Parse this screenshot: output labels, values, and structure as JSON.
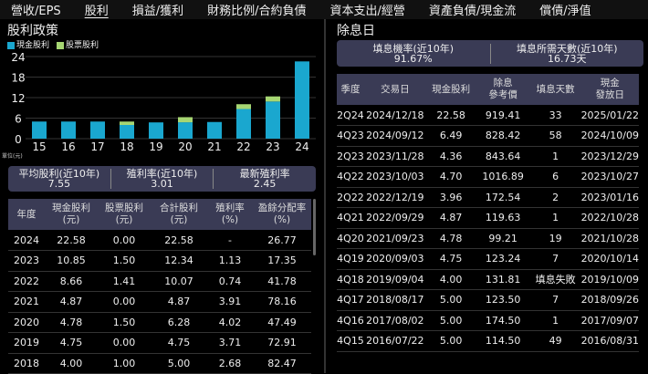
{
  "nav": [
    "營收/EPS",
    "股利",
    "損益/獲利",
    "財務比例/合約負債",
    "資本支出/經營",
    "資產負債/現金流",
    "償債/淨值"
  ],
  "left": {
    "title": "股利政策",
    "legend": {
      "cash": "現金股利",
      "stock": "股票股利"
    },
    "unit": "單位(元)",
    "summary": [
      {
        "label": "平均股利(近10年)",
        "value": "7.55"
      },
      {
        "label": "殖利率(近10年)",
        "value": "3.01"
      },
      {
        "label": "最新殖利率",
        "value": "2.45"
      }
    ],
    "table": {
      "headers": [
        [
          "年度",
          ""
        ],
        [
          "現金股利",
          "(元)"
        ],
        [
          "股票股利",
          "(元)"
        ],
        [
          "合計股利",
          "(元)"
        ],
        [
          "殖利率",
          "(%)"
        ],
        [
          "盈餘分配率",
          "(%)"
        ]
      ],
      "rows": [
        [
          "2024",
          "22.58",
          "0.00",
          "22.58",
          "-",
          "26.77"
        ],
        [
          "2023",
          "10.85",
          "1.50",
          "12.34",
          "1.13",
          "17.35"
        ],
        [
          "2022",
          "8.66",
          "1.41",
          "10.07",
          "0.74",
          "41.78"
        ],
        [
          "2021",
          "4.87",
          "0.00",
          "4.87",
          "3.91",
          "78.16"
        ],
        [
          "2020",
          "4.78",
          "1.50",
          "6.28",
          "4.02",
          "47.49"
        ],
        [
          "2019",
          "4.75",
          "0.00",
          "4.75",
          "3.71",
          "72.91"
        ],
        [
          "2018",
          "4.00",
          "1.00",
          "5.00",
          "2.68",
          "82.47"
        ]
      ]
    }
  },
  "chart_data": {
    "type": "bar",
    "stacked": true,
    "title": "股利政策",
    "categories": [
      "15",
      "16",
      "17",
      "18",
      "19",
      "20",
      "21",
      "22",
      "23",
      "24"
    ],
    "series": [
      {
        "name": "現金股利",
        "color": "#1aa7cf",
        "values": [
          5.0,
          5.0,
          5.0,
          4.0,
          4.75,
          4.78,
          4.87,
          8.66,
          10.85,
          22.58
        ]
      },
      {
        "name": "股票股利",
        "color": "#a6d672",
        "values": [
          0,
          0,
          0,
          1.0,
          0,
          1.5,
          0,
          1.41,
          1.5,
          0
        ]
      }
    ],
    "yticks": [
      0,
      6,
      12,
      18,
      24
    ],
    "ylim": [
      0,
      24
    ],
    "ylabel": "單位(元)"
  },
  "right": {
    "title": "除息日",
    "summary": [
      {
        "label": "填息機率(近10年)",
        "value": "91.67%"
      },
      {
        "label": "填息所需天數(近10年)",
        "value": "16.73天"
      }
    ],
    "table": {
      "headers": [
        [
          "季度",
          ""
        ],
        [
          "交易日",
          ""
        ],
        [
          "現金股利",
          ""
        ],
        [
          "除息",
          "參考價"
        ],
        [
          "填息天數",
          ""
        ],
        [
          "現金",
          "發放日"
        ]
      ],
      "rows": [
        [
          "2Q24",
          "2024/12/18",
          "22.58",
          "919.41",
          "33",
          "2025/01/22"
        ],
        [
          "4Q23",
          "2024/09/12",
          "6.49",
          "828.42",
          "58",
          "2024/10/09"
        ],
        [
          "2Q23",
          "2023/11/28",
          "4.36",
          "843.64",
          "1",
          "2023/12/29"
        ],
        [
          "4Q22",
          "2023/10/03",
          "4.70",
          "1016.89",
          "6",
          "2023/10/27"
        ],
        [
          "2Q22",
          "2022/12/19",
          "3.96",
          "172.54",
          "2",
          "2023/01/16"
        ],
        [
          "4Q21",
          "2022/09/29",
          "4.87",
          "119.63",
          "1",
          "2022/10/28"
        ],
        [
          "4Q20",
          "2021/09/23",
          "4.78",
          "99.21",
          "19",
          "2021/10/28"
        ],
        [
          "4Q19",
          "2020/09/03",
          "4.75",
          "123.24",
          "7",
          "2020/10/14"
        ],
        [
          "4Q18",
          "2019/09/04",
          "4.00",
          "131.81",
          "填息失敗",
          "2019/10/09"
        ],
        [
          "4Q17",
          "2018/08/17",
          "5.00",
          "123.50",
          "7",
          "2018/09/26"
        ],
        [
          "4Q16",
          "2017/08/02",
          "5.00",
          "174.50",
          "1",
          "2017/09/07"
        ],
        [
          "4Q15",
          "2016/07/22",
          "5.00",
          "114.50",
          "49",
          "2016/08/31"
        ]
      ]
    }
  }
}
